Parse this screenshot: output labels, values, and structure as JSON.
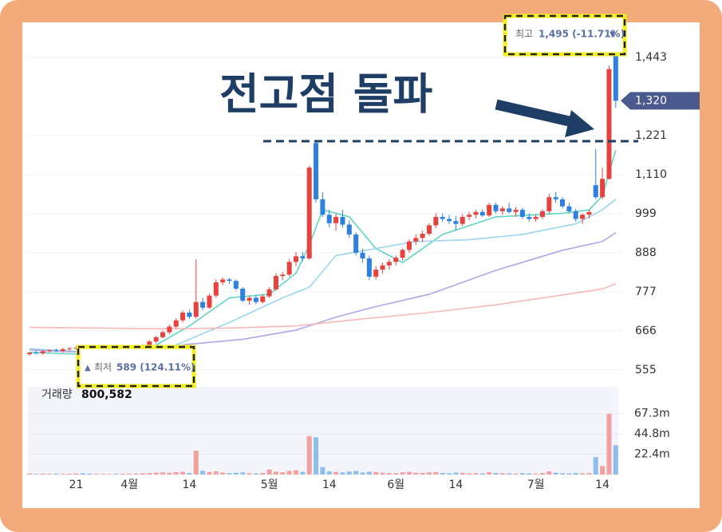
{
  "chart_data": {
    "type": "candlestick",
    "headline": "전고점 돌파",
    "categories": [
      null,
      null,
      null,
      null,
      null,
      null,
      null,
      "21",
      null,
      null,
      null,
      null,
      null,
      null,
      null,
      "4월",
      null,
      null,
      null,
      null,
      null,
      null,
      null,
      null,
      "14",
      null,
      null,
      null,
      null,
      null,
      null,
      null,
      null,
      null,
      null,
      null,
      "5월",
      null,
      null,
      null,
      null,
      null,
      null,
      null,
      null,
      "14",
      null,
      null,
      null,
      null,
      null,
      null,
      null,
      null,
      null,
      "6월",
      null,
      null,
      null,
      null,
      null,
      null,
      null,
      null,
      "14",
      null,
      null,
      null,
      null,
      null,
      null,
      null,
      null,
      null,
      null,
      null,
      "7월",
      null,
      null,
      null,
      null,
      null,
      null,
      null,
      null,
      null,
      "14",
      null,
      null
    ],
    "open": [
      600,
      604,
      602,
      608,
      611,
      609,
      614,
      616,
      618,
      602,
      594,
      597,
      599,
      603,
      600,
      609,
      612,
      617,
      624,
      636,
      648,
      662,
      678,
      696,
      718,
      706,
      748,
      732,
      766,
      804,
      812,
      808,
      786,
      752,
      760,
      748,
      764,
      784,
      822,
      826,
      862,
      878,
      872,
      1200,
      1040,
      996,
      972,
      990,
      968,
      940,
      888,
      872,
      820,
      840,
      852,
      862,
      874,
      896,
      920,
      930,
      942,
      966,
      990,
      984,
      978,
      970,
      990,
      996,
      1004,
      994,
      1024,
      1006,
      1014,
      1004,
      1010,
      990,
      984,
      990,
      1006,
      1046,
      1040,
      1020,
      1006,
      984,
      996,
      1080,
      1046,
      1098,
      1480
    ],
    "high": [
      606,
      610,
      612,
      614,
      616,
      618,
      620,
      622,
      624,
      606,
      600,
      603,
      606,
      608,
      612,
      616,
      620,
      628,
      640,
      652,
      668,
      684,
      702,
      724,
      726,
      870,
      760,
      772,
      812,
      818,
      816,
      812,
      790,
      766,
      768,
      770,
      790,
      830,
      834,
      870,
      890,
      890,
      1136,
      1207,
      1060,
      1010,
      1000,
      1010,
      980,
      946,
      900,
      880,
      850,
      860,
      870,
      880,
      900,
      926,
      940,
      950,
      972,
      1000,
      1000,
      996,
      992,
      998,
      1004,
      1010,
      1012,
      1030,
      1030,
      1020,
      1030,
      1018,
      1016,
      1000,
      996,
      1012,
      1056,
      1060,
      1046,
      1030,
      1012,
      1000,
      1010,
      1183,
      1130,
      1420,
      1495
    ],
    "low": [
      596,
      600,
      598,
      604,
      606,
      605,
      610,
      612,
      600,
      589,
      590,
      592,
      595,
      598,
      598,
      604,
      608,
      612,
      620,
      630,
      644,
      656,
      672,
      690,
      700,
      700,
      724,
      728,
      760,
      796,
      800,
      780,
      748,
      740,
      742,
      744,
      760,
      780,
      810,
      820,
      850,
      864,
      868,
      1030,
      990,
      960,
      950,
      960,
      930,
      880,
      860,
      810,
      812,
      828,
      840,
      852,
      866,
      888,
      910,
      918,
      936,
      958,
      976,
      970,
      950,
      964,
      980,
      986,
      990,
      990,
      1000,
      996,
      1000,
      990,
      984,
      976,
      976,
      984,
      998,
      1030,
      1014,
      1000,
      976,
      970,
      986,
      1040,
      1040,
      1096,
      1300
    ],
    "close": [
      604,
      602,
      608,
      611,
      609,
      614,
      616,
      618,
      602,
      594,
      597,
      599,
      603,
      600,
      609,
      612,
      617,
      624,
      636,
      648,
      662,
      678,
      696,
      718,
      706,
      748,
      732,
      766,
      804,
      812,
      808,
      786,
      752,
      760,
      748,
      764,
      784,
      822,
      826,
      862,
      878,
      872,
      1130,
      1040,
      996,
      972,
      990,
      968,
      940,
      888,
      872,
      820,
      840,
      852,
      862,
      874,
      896,
      920,
      930,
      942,
      966,
      990,
      984,
      978,
      970,
      990,
      996,
      1004,
      994,
      1024,
      1006,
      1014,
      1004,
      1010,
      990,
      984,
      990,
      1006,
      1046,
      1040,
      1020,
      1006,
      984,
      996,
      1004,
      1046,
      1098,
      1410,
      1320
    ],
    "volume": [
      1.2,
      0.8,
      1.0,
      0.9,
      1.1,
      0.8,
      1.0,
      1.3,
      1.5,
      1.2,
      0.9,
      0.8,
      0.7,
      0.9,
      1.0,
      1.1,
      1.2,
      1.4,
      1.8,
      2.1,
      2.4,
      2.0,
      2.6,
      3.1,
      1.8,
      26.4,
      4.2,
      2.8,
      3.5,
      2.2,
      1.6,
      2.0,
      2.4,
      1.5,
      1.3,
      1.8,
      5.6,
      3.2,
      2.6,
      4.1,
      4.8,
      3.0,
      42.5,
      41.2,
      8.1,
      3.6,
      2.9,
      2.4,
      3.3,
      4.0,
      2.2,
      3.1,
      2.8,
      2.0,
      1.8,
      1.6,
      2.5,
      2.9,
      2.1,
      1.9,
      2.4,
      2.8,
      1.7,
      1.5,
      2.2,
      1.9,
      1.4,
      1.6,
      1.3,
      2.6,
      1.8,
      1.5,
      1.4,
      1.2,
      1.6,
      1.3,
      1.2,
      1.7,
      3.4,
      2.0,
      1.5,
      1.3,
      1.8,
      1.4,
      1.6,
      19.2,
      9.4,
      67.0,
      32.4
    ],
    "up_color": "#e8423f",
    "down_color": "#2d7fe0",
    "volume_up_color": "#f2a0a0",
    "volume_down_color": "#8fbdf0",
    "ylim": [
      516,
      1527
    ],
    "yticks": [
      {
        "value": 1443,
        "label": "1,443"
      },
      {
        "value": 1221,
        "label": "1,221"
      },
      {
        "value": 1110,
        "label": "1,110"
      },
      999,
      888,
      777,
      666,
      555
    ],
    "volume_ylim": [
      0,
      96.8
    ],
    "volume_yticks": [
      {
        "value": 67.3,
        "label": "67.3m"
      },
      {
        "value": 44.8,
        "label": "44.8m"
      },
      {
        "value": 22.4,
        "label": "22.4m"
      }
    ],
    "grid": true,
    "ma_lines": [
      {
        "color": "#5fd6c4",
        "x": [
          0,
          10,
          18,
          24,
          30,
          36,
          40,
          42,
          44,
          48,
          52,
          56,
          62,
          70,
          80,
          84,
          86,
          88
        ],
        "values": [
          605,
          598,
          615,
          680,
          760,
          770,
          830,
          910,
          1010,
          990,
          900,
          860,
          940,
          990,
          1000,
          1010,
          1050,
          1180
        ]
      },
      {
        "color": "#9ad6ee",
        "x": [
          0,
          10,
          20,
          30,
          38,
          42,
          46,
          52,
          58,
          66,
          74,
          82,
          86,
          88
        ],
        "values": [
          615,
          605,
          610,
          690,
          760,
          790,
          880,
          900,
          920,
          925,
          940,
          970,
          1010,
          1040
        ]
      },
      {
        "color": "#b3a5e6",
        "x": [
          0,
          8,
          16,
          24,
          32,
          40,
          46,
          52,
          60,
          70,
          80,
          86,
          88
        ],
        "values": [
          612,
          605,
          610,
          628,
          642,
          668,
          705,
          735,
          770,
          838,
          895,
          920,
          945
        ]
      },
      {
        "color": "#f7b8b8",
        "x": [
          0,
          10,
          20,
          30,
          40,
          50,
          60,
          70,
          80,
          86,
          88
        ],
        "values": [
          676,
          674,
          672,
          674,
          680,
          700,
          718,
          740,
          768,
          785,
          800
        ]
      }
    ],
    "current_price": {
      "value": 1320,
      "label": "1,320"
    },
    "high_note": {
      "text": "최고",
      "value": "1,495 (-11.71%)"
    },
    "low_note": {
      "text": "최저",
      "value": "589 (124.11%)"
    },
    "volume_note": {
      "text": "거래량",
      "value": "800,582"
    }
  }
}
